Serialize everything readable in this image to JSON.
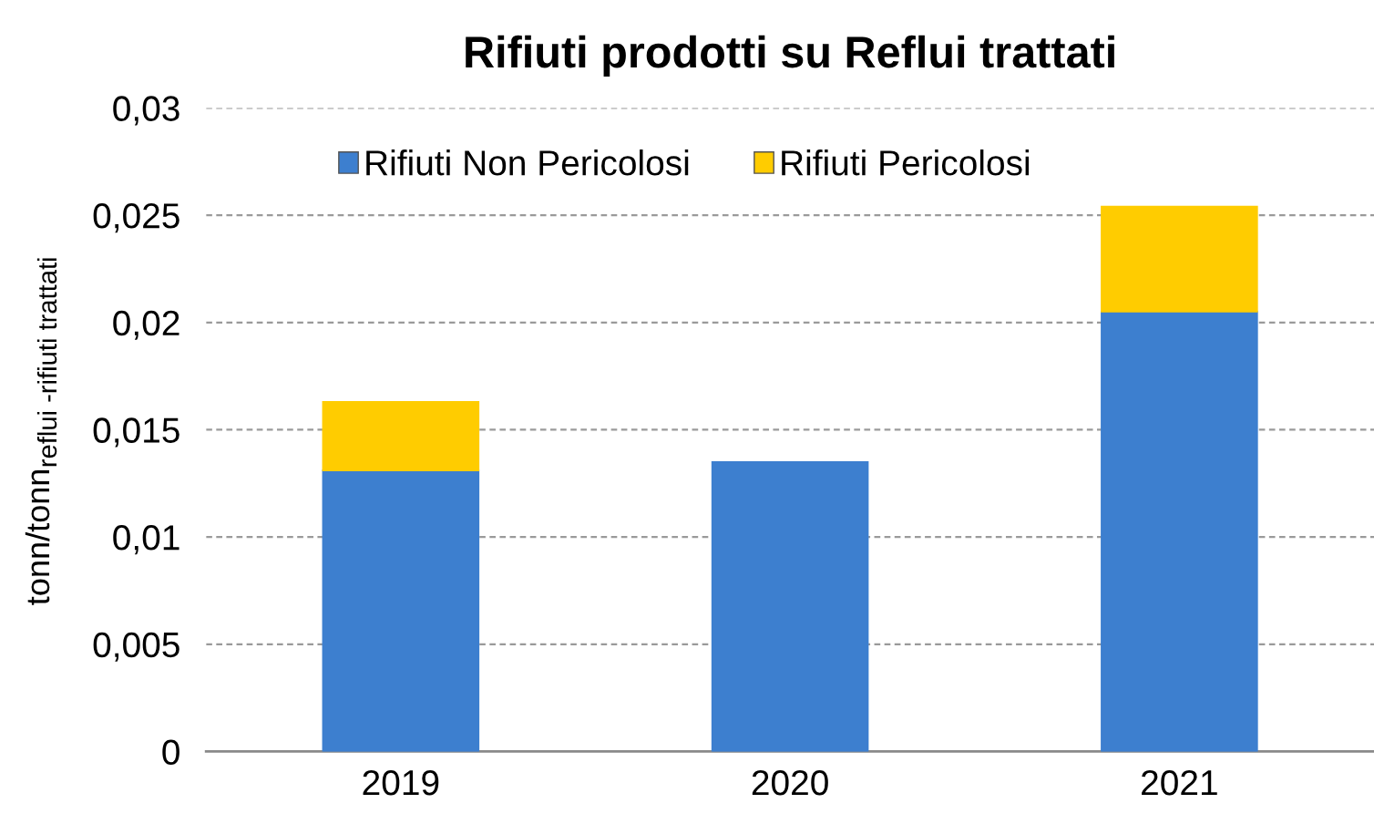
{
  "chart_data": {
    "type": "bar",
    "title": "Rifiuti prodotti su Reflui trattati",
    "ylabel": "tonn/tonn$_{reflui -rifiuti trattati}$",
    "categories": [
      "2019",
      "2020",
      "2021"
    ],
    "series": [
      {
        "name": "Rifiuti Non Pericolosi",
        "color": "#3d7fcf",
        "values": [
          0.0131,
          0.0135,
          0.0205
        ]
      },
      {
        "name": "Rifiuti Pericolosi",
        "color": "#ffcc00",
        "values": [
          0.0032,
          null,
          0.0049
        ]
      }
    ],
    "stacked": true,
    "ylim": [
      0,
      0.03
    ],
    "yticks": [
      0,
      {
        "value": 0.005,
        "label": "0,005"
      },
      {
        "value": 0.01,
        "label": "0,01"
      },
      {
        "value": 0.015,
        "label": "0,015"
      },
      {
        "value": 0.02,
        "label": "0,02"
      },
      {
        "value": 0.025,
        "label": "0,025"
      },
      {
        "value": 0.03,
        "label": "0,03"
      }
    ],
    "grid": "y",
    "legend": "top"
  }
}
